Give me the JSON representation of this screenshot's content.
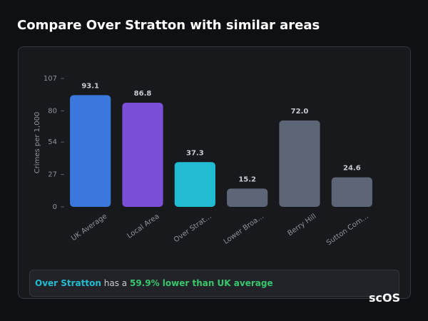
{
  "header": {
    "title": "Compare Over Stratton with similar areas"
  },
  "chart_data": {
    "type": "bar",
    "y_label": "Crimes per 1,000",
    "categories": [
      "UK Average",
      "Local Area",
      "Over Strat…",
      "Lower Broa…",
      "Berry Hill",
      "Sutton Com…"
    ],
    "values": [
      93.1,
      86.8,
      37.3,
      15.2,
      72,
      24.6
    ],
    "value_labels": [
      "93.1",
      "86.8",
      "37.3",
      "15.2",
      "72.0",
      "24.6"
    ],
    "colors": [
      "#3a78dc",
      "#7b4fd8",
      "#22bcd2",
      "#5d6676",
      "#5d6676",
      "#5d6676"
    ],
    "ylim": [
      0,
      107
    ],
    "yticks": [
      0,
      27,
      54,
      80,
      107
    ]
  },
  "summary": {
    "area": "Over Stratton",
    "connector": "has a",
    "highlight": "59.9% lower than UK average"
  },
  "logo": "scOS"
}
